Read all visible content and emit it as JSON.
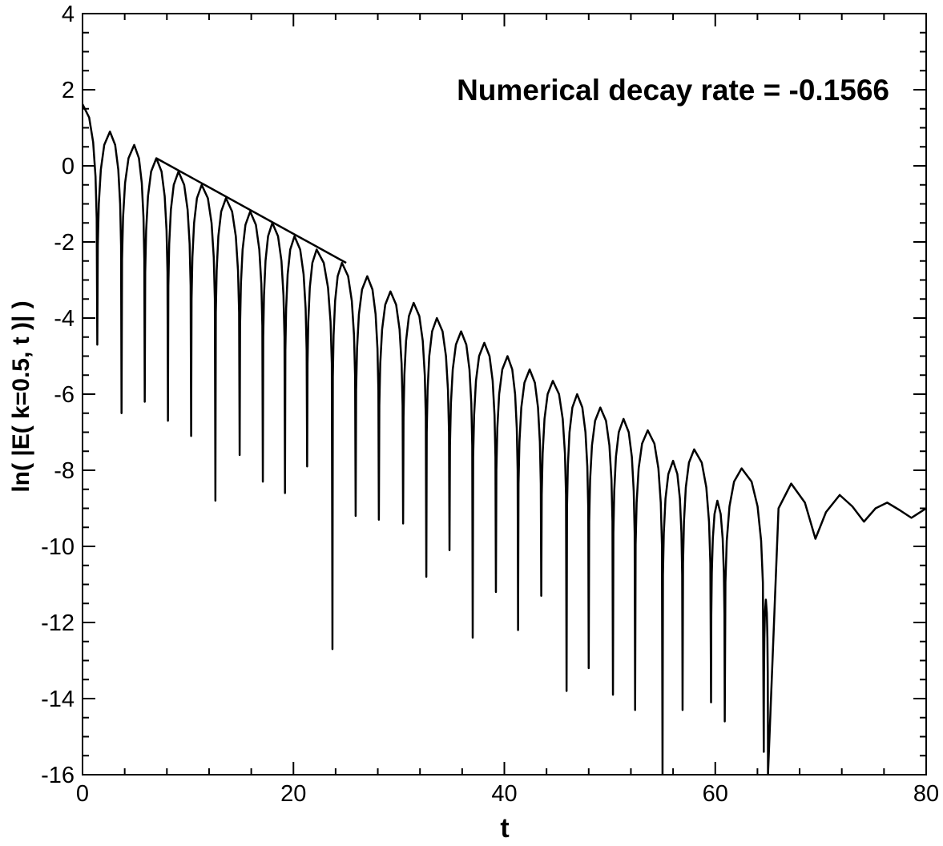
{
  "chart_data": {
    "type": "line",
    "title": "",
    "xlabel": "t",
    "ylabel": "ln( |E( k=0.5, t )| )",
    "xlim": [
      0,
      80
    ],
    "ylim": [
      -16,
      4
    ],
    "xticks": [
      0,
      20,
      40,
      60,
      80
    ],
    "yticks": [
      4,
      2,
      0,
      -2,
      -4,
      -6,
      -8,
      -10,
      -12,
      -14,
      -16
    ],
    "grid": false,
    "annotation": "Numerical decay rate = -0.1566",
    "series": [
      {
        "style": "oscillating",
        "start": {
          "t": 0,
          "y": 1.62
        },
        "humps": [
          {
            "peak_t": 0.0,
            "peak_y": 1.62,
            "zero_t": 1.4,
            "dip_y": -4.7
          },
          {
            "peak_t": 2.6,
            "peak_y": 0.9,
            "zero_t": 3.7,
            "dip_y": -6.5
          },
          {
            "peak_t": 4.9,
            "peak_y": 0.55,
            "zero_t": 5.9,
            "dip_y": -6.2
          },
          {
            "peak_t": 7.0,
            "peak_y": 0.2,
            "zero_t": 8.1,
            "dip_y": -6.7
          },
          {
            "peak_t": 9.1,
            "peak_y": -0.15,
            "zero_t": 10.3,
            "dip_y": -7.1
          },
          {
            "peak_t": 11.3,
            "peak_y": -0.5,
            "zero_t": 12.6,
            "dip_y": -8.8
          },
          {
            "peak_t": 13.6,
            "peak_y": -0.85,
            "zero_t": 14.9,
            "dip_y": -7.6
          },
          {
            "peak_t": 15.9,
            "peak_y": -1.2,
            "zero_t": 17.1,
            "dip_y": -8.3
          },
          {
            "peak_t": 18.0,
            "peak_y": -1.5,
            "zero_t": 19.2,
            "dip_y": -8.6
          },
          {
            "peak_t": 20.1,
            "peak_y": -1.85,
            "zero_t": 21.3,
            "dip_y": -7.9
          },
          {
            "peak_t": 22.2,
            "peak_y": -2.2,
            "zero_t": 23.7,
            "dip_y": -12.7
          },
          {
            "peak_t": 24.6,
            "peak_y": -2.55,
            "zero_t": 25.9,
            "dip_y": -9.2
          },
          {
            "peak_t": 27.0,
            "peak_y": -2.9,
            "zero_t": 28.1,
            "dip_y": -9.3
          },
          {
            "peak_t": 29.2,
            "peak_y": -3.3,
            "zero_t": 30.4,
            "dip_y": -9.4
          },
          {
            "peak_t": 31.4,
            "peak_y": -3.6,
            "zero_t": 32.6,
            "dip_y": -10.8
          },
          {
            "peak_t": 33.6,
            "peak_y": -4.0,
            "zero_t": 34.8,
            "dip_y": -10.1
          },
          {
            "peak_t": 35.9,
            "peak_y": -4.35,
            "zero_t": 37.0,
            "dip_y": -12.4
          },
          {
            "peak_t": 38.1,
            "peak_y": -4.65,
            "zero_t": 39.2,
            "dip_y": -11.2
          },
          {
            "peak_t": 40.3,
            "peak_y": -5.0,
            "zero_t": 41.3,
            "dip_y": -12.2
          },
          {
            "peak_t": 42.4,
            "peak_y": -5.35,
            "zero_t": 43.5,
            "dip_y": -11.3
          },
          {
            "peak_t": 44.6,
            "peak_y": -5.65,
            "zero_t": 45.9,
            "dip_y": -13.8
          },
          {
            "peak_t": 46.9,
            "peak_y": -6.0,
            "zero_t": 48.0,
            "dip_y": -13.2
          },
          {
            "peak_t": 49.1,
            "peak_y": -6.35,
            "zero_t": 50.3,
            "dip_y": -13.9
          },
          {
            "peak_t": 51.3,
            "peak_y": -6.65,
            "zero_t": 52.4,
            "dip_y": -14.3
          },
          {
            "peak_t": 53.6,
            "peak_y": -6.95,
            "zero_t": 55.0,
            "dip_y": -16.0
          },
          {
            "peak_t": 56.0,
            "peak_y": -7.75,
            "zero_t": 56.9,
            "dip_y": -14.3
          },
          {
            "peak_t": 58.0,
            "peak_y": -7.45,
            "zero_t": 59.6,
            "dip_y": -14.1
          },
          {
            "peak_t": 60.2,
            "peak_y": -8.8,
            "zero_t": 60.9,
            "dip_y": -14.6
          },
          {
            "peak_t": 62.5,
            "peak_y": -7.95,
            "zero_t": 64.6,
            "dip_y": -15.4
          },
          {
            "peak_t": 64.8,
            "peak_y": -11.4,
            "zero_t": 65.0,
            "dip_y": -16.0
          }
        ],
        "tail": [
          {
            "t": 65.0,
            "y": -16.0
          },
          {
            "t": 66.0,
            "y": -9.0
          },
          {
            "t": 67.2,
            "y": -8.35
          },
          {
            "t": 68.5,
            "y": -8.85
          },
          {
            "t": 69.5,
            "y": -9.8
          },
          {
            "t": 70.5,
            "y": -9.1
          },
          {
            "t": 71.8,
            "y": -8.65
          },
          {
            "t": 73.0,
            "y": -8.95
          },
          {
            "t": 74.1,
            "y": -9.35
          },
          {
            "t": 75.2,
            "y": -9.0
          },
          {
            "t": 76.3,
            "y": -8.85
          },
          {
            "t": 77.5,
            "y": -9.05
          },
          {
            "t": 78.6,
            "y": -9.25
          },
          {
            "t": 80.0,
            "y": -9.0
          }
        ]
      },
      {
        "style": "fit-line",
        "x": [
          7.0,
          25.0
        ],
        "y": [
          0.2,
          -2.55
        ]
      }
    ]
  }
}
